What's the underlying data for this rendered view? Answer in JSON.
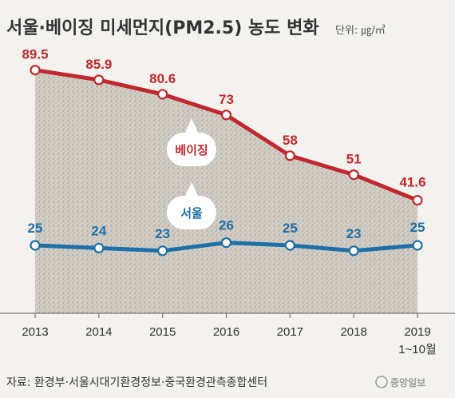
{
  "title": "서울·베이징 미세먼지(PM2.5) 농도 변화",
  "unit_label": "단위: ㎍/㎥",
  "source": "자료: 환경부·서울시대기환경정보·중국환경관측종합센터",
  "logo": "중앙일보",
  "colors": {
    "beijing": "#c0282d",
    "seoul": "#1e6fa8",
    "background": "#f4f2ee",
    "fill": "#bdb8b0"
  },
  "chart_data": {
    "type": "line",
    "categories": [
      "2013",
      "2014",
      "2015",
      "2016",
      "2017",
      "2018",
      "2019"
    ],
    "x_sublabels": [
      "",
      "",
      "",
      "",
      "",
      "",
      "1~10월"
    ],
    "ylim": [
      0,
      100
    ],
    "grid": false,
    "series": [
      {
        "name": "베이징",
        "values": [
          89.5,
          85.9,
          80.6,
          73,
          58,
          51,
          41.6
        ],
        "labels": [
          "89.5",
          "85.9",
          "80.6",
          "73",
          "58",
          "51",
          "41.6"
        ]
      },
      {
        "name": "서울",
        "values": [
          25,
          24,
          23,
          26,
          25,
          23,
          25
        ],
        "labels": [
          "25",
          "24",
          "23",
          "26",
          "25",
          "23",
          "25"
        ]
      }
    ]
  }
}
